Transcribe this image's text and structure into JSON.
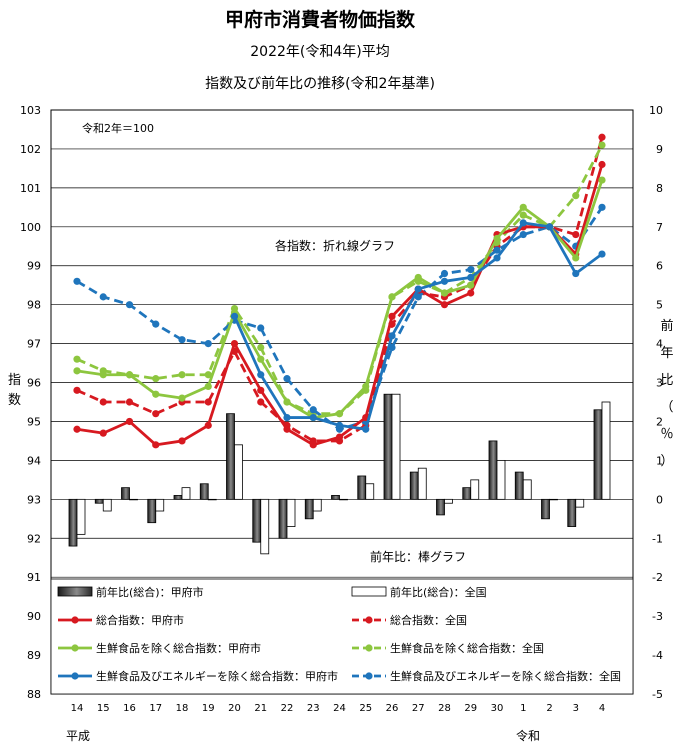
{
  "chart_data": {
    "type": "line",
    "title": "甲府市消費者物価指数",
    "subtitle1": "2022年(令和4年)平均",
    "subtitle2": "指数及び前年比の推移(令和2年基準)",
    "base_note": "令和2年＝100",
    "line_note": "各指数：折れ線グラフ",
    "bar_note": "前年比：棒グラフ",
    "ylabel_left": "指数",
    "ylabel_right": "前年比（％）",
    "ylim_left": [
      88,
      103
    ],
    "ylim_right": [
      -5,
      10
    ],
    "yticks_left": [
      "88",
      "89",
      "90",
      "91",
      "92",
      "93",
      "94",
      "95",
      "96",
      "97",
      "98",
      "99",
      "100",
      "101",
      "102",
      "103"
    ],
    "yticks_right": [
      "-5",
      "-4",
      "-3",
      "-2",
      "-1",
      "0",
      "1",
      "2",
      "3",
      "4",
      "5",
      "6",
      "7",
      "8",
      "9",
      "10"
    ],
    "categories": [
      "14",
      "15",
      "16",
      "17",
      "18",
      "19",
      "20",
      "21",
      "22",
      "23",
      "24",
      "25",
      "26",
      "27",
      "28",
      "29",
      "30",
      "1",
      "2",
      "3",
      "4"
    ],
    "era_labels": [
      {
        "text": "平成",
        "start_index": 0
      },
      {
        "text": "令和",
        "start_index": 17
      }
    ],
    "bar_series": [
      {
        "name": "前年比(総合)：甲府市",
        "color": "#555555",
        "values": [
          -1.2,
          -0.1,
          0.3,
          -0.6,
          0.1,
          0.4,
          2.2,
          -1.1,
          -1.0,
          -0.5,
          0.1,
          0.6,
          2.7,
          0.7,
          -0.4,
          0.3,
          1.5,
          0.7,
          -0.5,
          -0.7,
          2.3
        ]
      },
      {
        "name": "前年比(総合)：全国",
        "color": "#ffffff",
        "values": [
          -0.9,
          -0.3,
          0.0,
          -0.3,
          0.3,
          0.0,
          1.4,
          -1.4,
          -0.7,
          -0.3,
          0.0,
          0.4,
          2.7,
          0.8,
          -0.1,
          0.5,
          1.0,
          0.5,
          0.0,
          -0.2,
          2.5
        ]
      }
    ],
    "line_series": [
      {
        "name": "総合指数：甲府市",
        "color": "#d71920",
        "dashed": false,
        "values": [
          94.8,
          94.7,
          95.0,
          94.4,
          94.5,
          94.9,
          97.0,
          95.8,
          94.8,
          94.4,
          94.6,
          95.1,
          97.7,
          98.4,
          98.0,
          98.3,
          99.8,
          100.0,
          100.0,
          99.3,
          101.6
        ]
      },
      {
        "name": "総合指数：全国",
        "color": "#d71920",
        "dashed": true,
        "values": [
          95.8,
          95.5,
          95.5,
          95.2,
          95.5,
          95.5,
          96.8,
          95.5,
          94.9,
          94.5,
          94.5,
          94.9,
          97.5,
          98.3,
          98.2,
          98.5,
          99.5,
          100.0,
          100.0,
          99.8,
          102.3
        ]
      },
      {
        "name": "生鮮食品を除く総合指数：甲府市",
        "color": "#8dc63f",
        "dashed": false,
        "values": [
          96.3,
          96.2,
          96.2,
          95.7,
          95.6,
          95.9,
          97.8,
          96.6,
          95.5,
          95.1,
          95.2,
          95.9,
          98.2,
          98.7,
          98.3,
          98.5,
          99.7,
          100.5,
          100.0,
          99.2,
          101.2
        ]
      },
      {
        "name": "生鮮食品を除く総合指数：全国",
        "color": "#8dc63f",
        "dashed": true,
        "values": [
          96.6,
          96.3,
          96.2,
          96.1,
          96.2,
          96.2,
          97.9,
          96.9,
          95.5,
          95.2,
          95.2,
          95.8,
          98.2,
          98.6,
          98.3,
          98.7,
          99.6,
          100.3,
          100.0,
          100.8,
          102.1
        ]
      },
      {
        "name": "生鮮食品及びエネルギーを除く総合指数：甲府市",
        "color": "#1f75bc",
        "dashed": false,
        "values": [
          null,
          null,
          null,
          null,
          null,
          null,
          97.7,
          96.2,
          95.1,
          95.1,
          94.9,
          94.8,
          97.2,
          98.4,
          98.6,
          98.7,
          99.2,
          100.1,
          100.0,
          98.8,
          99.3
        ]
      },
      {
        "name": "生鮮食品及びエネルギーを除く総合指数：全国",
        "color": "#1f75bc",
        "dashed": true,
        "values": [
          98.6,
          98.2,
          98.0,
          97.5,
          97.1,
          97.0,
          97.6,
          97.4,
          96.1,
          95.3,
          94.8,
          95.0,
          96.9,
          98.2,
          98.8,
          98.9,
          99.4,
          99.8,
          100.0,
          99.5,
          100.5
        ]
      }
    ],
    "legend": [
      "前年比(総合)：甲府市",
      "前年比(総合)：全国",
      "総合指数：甲府市",
      "総合指数：全国",
      "生鮮食品を除く総合指数：甲府市",
      "生鮮食品を除く総合指数：全国",
      "生鮮食品及びエネルギーを除く総合指数：甲府市",
      "生鮮食品及びエネルギーを除く総合指数：全国"
    ],
    "legend_placement": "bottom-inside",
    "grid": true
  }
}
